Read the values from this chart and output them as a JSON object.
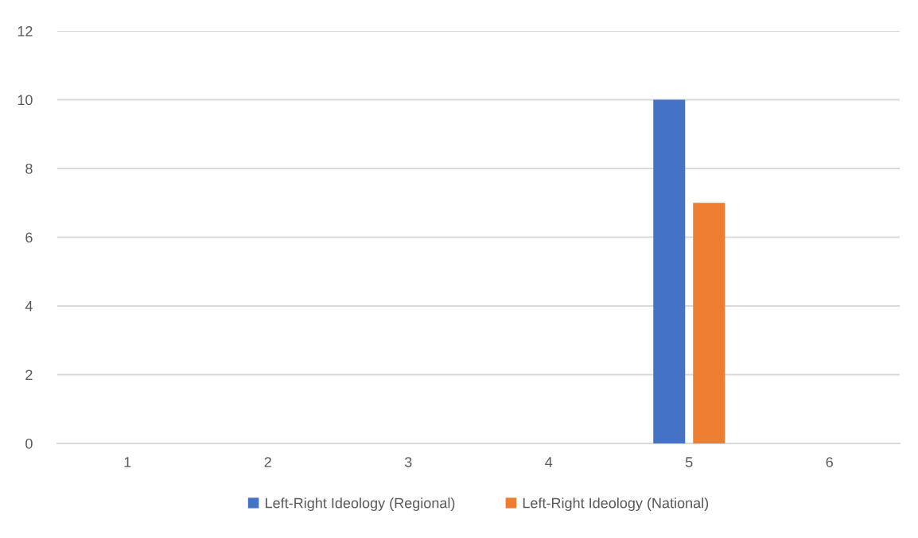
{
  "chart_data": {
    "type": "bar",
    "categories": [
      "1",
      "2",
      "3",
      "4",
      "5",
      "6"
    ],
    "series": [
      {
        "name": "Left-Right Ideology (Regional)",
        "color": "#4472c4",
        "values": [
          0,
          0,
          0,
          0,
          10,
          0
        ]
      },
      {
        "name": "Left-Right Ideology (National)",
        "color": "#ed7d31",
        "values": [
          0,
          0,
          0,
          0,
          7,
          0
        ]
      }
    ],
    "ylim": [
      0,
      12
    ],
    "yticks": [
      0,
      2,
      4,
      6,
      8,
      10,
      12
    ],
    "grid": "y",
    "legend": "bottom"
  }
}
